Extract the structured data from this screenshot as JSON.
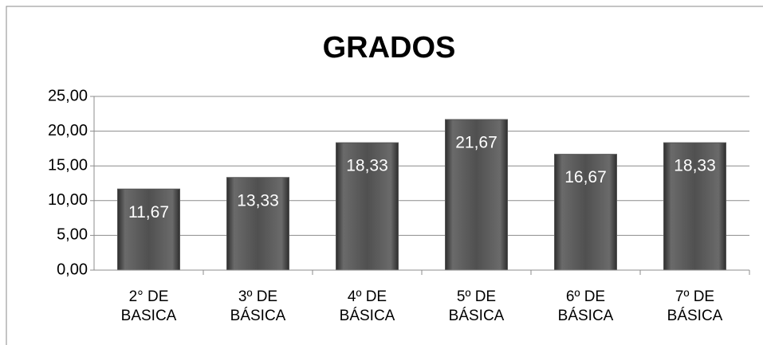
{
  "chart_data": {
    "type": "bar",
    "title": "GRADOS",
    "categories": [
      "2° DE BASICA",
      "3º DE BÁSICA",
      "4º DE BÁSICA",
      "5º DE BÁSICA",
      "6º DE BÁSICA",
      "7º DE BÁSICA"
    ],
    "values": [
      11.67,
      13.33,
      18.33,
      21.67,
      16.67,
      18.33
    ],
    "value_labels": [
      "11,67",
      "13,33",
      "18,33",
      "21,67",
      "16,67",
      "18,33"
    ],
    "color": "#555555",
    "ylim": [
      0,
      25
    ],
    "yticks": [
      {
        "value": 0,
        "label": "0,00"
      },
      {
        "value": 5,
        "label": "5,00"
      },
      {
        "value": 10,
        "label": "10,00"
      },
      {
        "value": 15,
        "label": "15,00"
      },
      {
        "value": 20,
        "label": "20,00"
      },
      {
        "value": 25,
        "label": "25,00"
      }
    ],
    "grid": true
  }
}
